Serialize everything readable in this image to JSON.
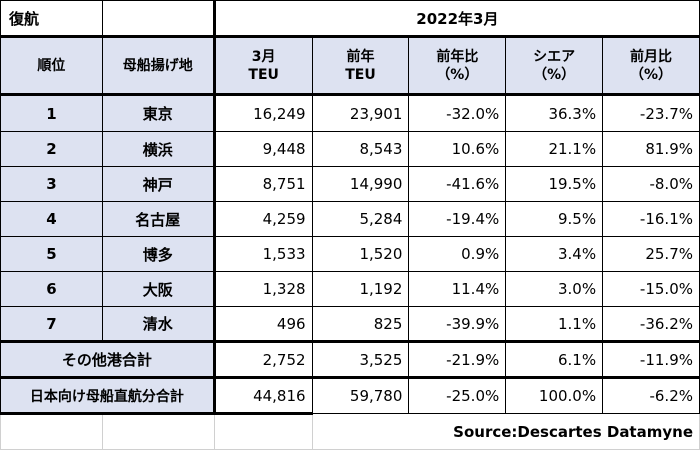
{
  "header": {
    "left_title": "復航",
    "period": "2022年3月",
    "col_rank": "順位",
    "col_port": "母船揚げ地",
    "col_teu_month": [
      "3月",
      "TEU"
    ],
    "col_teu_prev": [
      "前年",
      "TEU"
    ],
    "col_yoy": [
      "前年比",
      "（%）"
    ],
    "col_share": [
      "シエア",
      "（%）"
    ],
    "col_mom": [
      "前月比",
      "（%）"
    ]
  },
  "rows": [
    {
      "rank": "1",
      "port": "東京",
      "teu": "16,249",
      "prev": "23,901",
      "yoy": "-32.0%",
      "share": "36.3%",
      "mom": "-23.7%"
    },
    {
      "rank": "2",
      "port": "横浜",
      "teu": "9,448",
      "prev": "8,543",
      "yoy": "10.6%",
      "share": "21.1%",
      "mom": "81.9%"
    },
    {
      "rank": "3",
      "port": "神戸",
      "teu": "8,751",
      "prev": "14,990",
      "yoy": "-41.6%",
      "share": "19.5%",
      "mom": "-8.0%"
    },
    {
      "rank": "4",
      "port": "名古屋",
      "teu": "4,259",
      "prev": "5,284",
      "yoy": "-19.4%",
      "share": "9.5%",
      "mom": "-16.1%"
    },
    {
      "rank": "5",
      "port": "博多",
      "teu": "1,533",
      "prev": "1,520",
      "yoy": "0.9%",
      "share": "3.4%",
      "mom": "25.7%"
    },
    {
      "rank": "6",
      "port": "大阪",
      "teu": "1,328",
      "prev": "1,192",
      "yoy": "11.4%",
      "share": "3.0%",
      "mom": "-15.0%"
    },
    {
      "rank": "7",
      "port": "清水",
      "teu": "496",
      "prev": "825",
      "yoy": "-39.9%",
      "share": "1.1%",
      "mom": "-36.2%"
    }
  ],
  "other": {
    "label": "その他港合計",
    "teu": "2,752",
    "prev": "3,525",
    "yoy": "-21.9%",
    "share": "6.1%",
    "mom": "-11.9%"
  },
  "total": {
    "label": "日本向け母船直航分合計",
    "teu": "44,816",
    "prev": "59,780",
    "yoy": "-25.0%",
    "share": "100.0%",
    "mom": "-6.2%"
  },
  "source": "Source:Descartes Datamyne"
}
